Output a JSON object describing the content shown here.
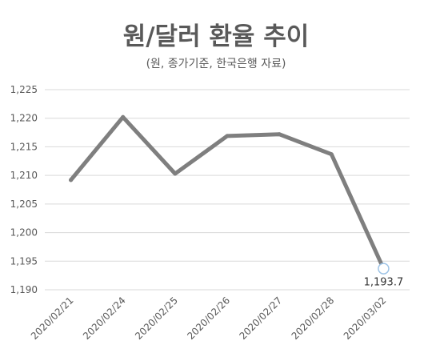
{
  "chart_data": {
    "type": "line",
    "title": "원/달러 환율 추이",
    "subtitle": "(원, 종가기준, 한국은행 자료)",
    "categories": [
      "2020/02/21",
      "2020/02/24",
      "2020/02/25",
      "2020/02/26",
      "2020/02/27",
      "2020/02/28",
      "2020/03/02"
    ],
    "series": [
      {
        "values": [
          1209.2,
          1220.2,
          1210.3,
          1216.9,
          1217.2,
          1213.7,
          1193.7
        ]
      }
    ],
    "ylim": [
      1190,
      1225
    ],
    "yticks": [
      1190,
      1195,
      1200,
      1205,
      1210,
      1215,
      1220,
      1225
    ],
    "ytick_labels": [
      "1,190",
      "1,195",
      "1,200",
      "1,205",
      "1,210",
      "1,215",
      "1,220",
      "1,225"
    ],
    "data_labels": [
      {
        "index": 6,
        "text": "1,193.7"
      }
    ],
    "line_color": "#7f7f7f",
    "marker_fill": "#ffffff",
    "marker_stroke": "#9dc3e6",
    "grid": true,
    "legend": "none"
  }
}
